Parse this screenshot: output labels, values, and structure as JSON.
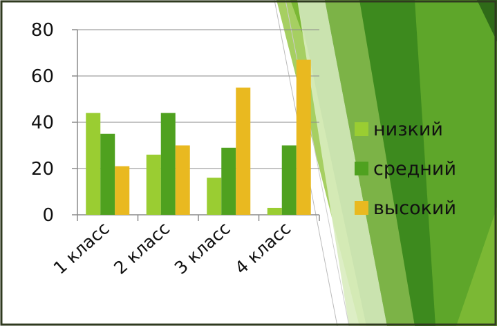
{
  "chart_data": {
    "type": "bar",
    "categories": [
      "1 класс",
      "2 класс",
      "3 класс",
      "4 класс"
    ],
    "series": [
      {
        "name": "низкий",
        "values": [
          44,
          26,
          16,
          3
        ],
        "color": "#9acd32"
      },
      {
        "name": "средний",
        "values": [
          35,
          44,
          29,
          30
        ],
        "color": "#4fa11f"
      },
      {
        "name": "высокий",
        "values": [
          21,
          30,
          55,
          67
        ],
        "color": "#e9b920"
      }
    ],
    "yticks": [
      0,
      20,
      40,
      60,
      80
    ],
    "ylim": [
      0,
      80
    ],
    "grid": true,
    "legend": "right",
    "title": "",
    "xlabel": "",
    "ylabel": ""
  },
  "background": {
    "frame_color": "#2f3a1f",
    "slide_shapes": [
      "#2f6a18",
      "#3d8a1e",
      "#5ea62a",
      "#7bb834",
      "#a6cf62",
      "#d9ecbf"
    ]
  }
}
